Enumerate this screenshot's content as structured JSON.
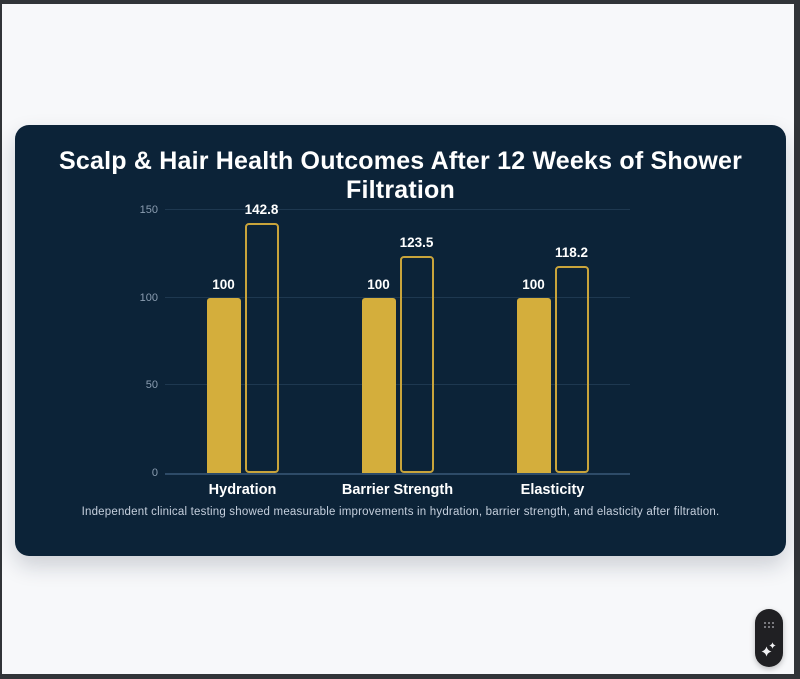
{
  "window": {
    "frame_color": "#313438",
    "page_background": "#f7f8fa"
  },
  "card": {
    "background": "#0c2338",
    "title": "Scalp & Hair Health Outcomes After 12 Weeks of Shower Filtration",
    "title_color": "#ffffff",
    "caption": "Independent clinical testing showed measurable improvements in hydration, barrier strength, and elasticity after filtration.",
    "caption_color": "#c5cfdd"
  },
  "chart_data": {
    "type": "bar",
    "title": "Scalp & Hair Health Outcomes After 12 Weeks of Shower Filtration",
    "categories": [
      "Hydration",
      "Barrier Strength",
      "Elasticity"
    ],
    "series": [
      {
        "name": "filled-gold-bar",
        "style": "filled",
        "color": "#d4ae3c",
        "values": [
          100,
          100,
          100
        ]
      },
      {
        "name": "outlined-gold-bar",
        "style": "outlined",
        "color": "#c9a43b",
        "values": [
          142.8,
          123.5,
          118.2
        ]
      }
    ],
    "value_labels": [
      [
        "100",
        "100",
        "100"
      ],
      [
        "142.8",
        "123.5",
        "118.2"
      ]
    ],
    "ylim": [
      0,
      150
    ],
    "yticks": [
      0,
      50,
      100,
      150
    ],
    "grid": true,
    "legend_position": "none",
    "xlabel": "",
    "ylabel": "",
    "bar_color": "#d4ae3c",
    "grid_color": "rgba(125,165,205,0.16)",
    "axis_color": "#2e4b68",
    "tick_label_color": "#8b9db1"
  },
  "widget": {
    "background": "#202023",
    "dots_icon": "drag-dots-grid",
    "sparkle_icon": "sparkle"
  }
}
